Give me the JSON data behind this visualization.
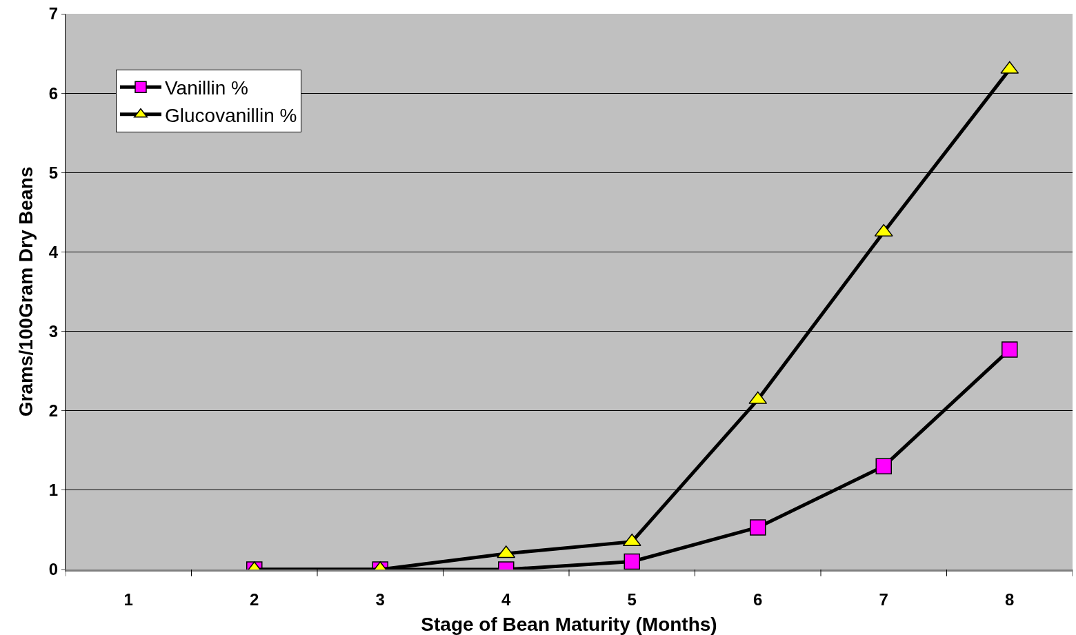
{
  "chart_data": {
    "type": "line",
    "xlabel": "Stage of Bean Maturity (Months)",
    "ylabel": "Grams/100Gram Dry Beans",
    "categories": [
      "1",
      "2",
      "3",
      "4",
      "5",
      "6",
      "7",
      "8"
    ],
    "series": [
      {
        "name": "Vanillin %",
        "color": "#ff00ff",
        "marker": "square",
        "values": [
          null,
          0,
          0,
          0,
          0.1,
          0.53,
          1.3,
          2.77
        ]
      },
      {
        "name": "Glucovanillin %",
        "color": "#ffff00",
        "marker": "triangle",
        "values": [
          null,
          0,
          0,
          0.2,
          0.35,
          2.14,
          4.25,
          6.3
        ]
      }
    ],
    "ylim": [
      0,
      7
    ],
    "yticks": [
      0,
      1,
      2,
      3,
      4,
      5,
      6,
      7
    ],
    "grid": "y",
    "legend": "top left",
    "line_style": "solid"
  }
}
